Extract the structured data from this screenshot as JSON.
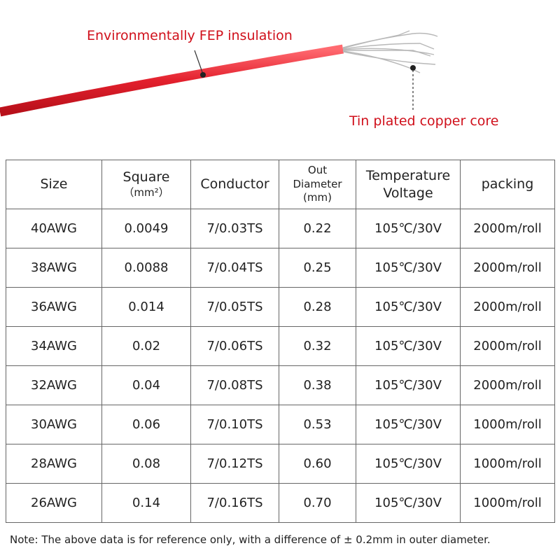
{
  "labels": {
    "insulation": "Environmentally FEP insulation",
    "core": "Tin plated copper core"
  },
  "table": {
    "header": [
      [
        "Size"
      ],
      [
        "Square",
        "（mm²）"
      ],
      [
        "Conductor"
      ],
      [
        "Out",
        "Diameter",
        "(mm)"
      ],
      [
        "Temperature",
        "Voltage"
      ],
      [
        "packing"
      ]
    ],
    "rows": [
      [
        "40AWG",
        "0.0049",
        "7/0.03TS",
        "0.22",
        "105℃/30V",
        "2000m/roll"
      ],
      [
        "38AWG",
        "0.0088",
        "7/0.04TS",
        "0.25",
        "105℃/30V",
        "2000m/roll"
      ],
      [
        "36AWG",
        "0.014",
        "7/0.05TS",
        "0.28",
        "105℃/30V",
        "2000m/roll"
      ],
      [
        "34AWG",
        "0.02",
        "7/0.06TS",
        "0.32",
        "105℃/30V",
        "2000m/roll"
      ],
      [
        "32AWG",
        "0.04",
        "7/0.08TS",
        "0.38",
        "105℃/30V",
        "2000m/roll"
      ],
      [
        "30AWG",
        "0.06",
        "7/0.10TS",
        "0.53",
        "105℃/30V",
        "1000m/roll"
      ],
      [
        "28AWG",
        "0.08",
        "7/0.12TS",
        "0.60",
        "105℃/30V",
        "1000m/roll"
      ],
      [
        "26AWG",
        "0.14",
        "7/0.16TS",
        "0.70",
        "105℃/30V",
        "1000m/roll"
      ]
    ]
  },
  "note": "Note: The above data is for reference only, with a difference of ± 0.2mm in outer diameter."
}
